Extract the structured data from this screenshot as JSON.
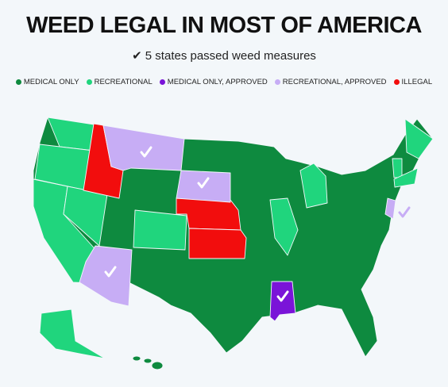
{
  "title": "WEED LEGAL IN MOST OF AMERICA",
  "subtitle": "✔ 5 states passed weed measures",
  "legend": {
    "items": [
      {
        "label": "MEDICAL ONLY",
        "color": "#0e8a3f"
      },
      {
        "label": "RECREATIONAL",
        "color": "#20d57d"
      },
      {
        "label": "MEDICAL ONLY, APPROVED",
        "color": "#7a14d8"
      },
      {
        "label": "RECREATIONAL, APPROVED",
        "color": "#c7adf5"
      },
      {
        "label": "ILLEGAL",
        "color": "#f20d0d"
      }
    ]
  }
}
